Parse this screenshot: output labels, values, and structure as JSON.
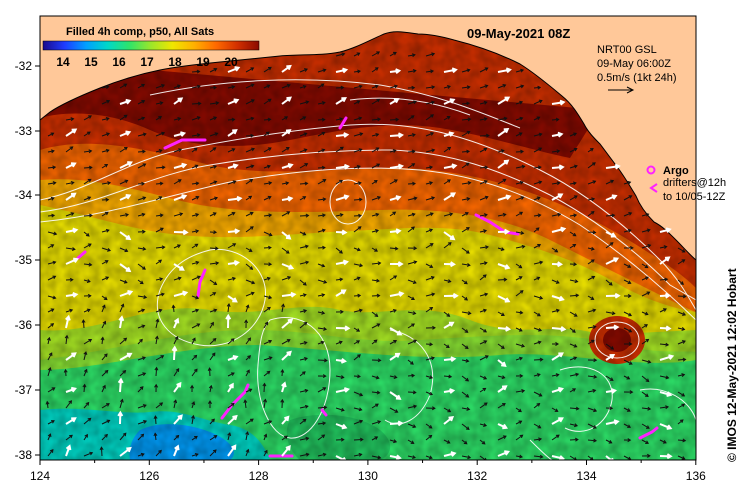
{
  "header": {
    "timestamp": "09-May-2021 08Z",
    "legend_title": "Filled 4h comp, p50, All Sats",
    "legend_ticks": [
      "14",
      "15",
      "16",
      "17",
      "18",
      "19",
      "20"
    ],
    "legend_colors": [
      "#1a0a8c",
      "#1e3cff",
      "#00a0ff",
      "#00d8c8",
      "#2ee46a",
      "#9ce62a",
      "#f0e600",
      "#ffb000",
      "#ff6a00",
      "#d23000",
      "#8a0a00"
    ]
  },
  "info_box": {
    "line1": "NRT00 GSL",
    "line2": "09-May 06:00Z",
    "line3": "0.5m/s (1kt 24h)"
  },
  "legend_markers": {
    "argo_label": "Argo",
    "drifters_line1": "drifters@12h",
    "drifters_line2": "to 10/05-12Z"
  },
  "axes": {
    "x_ticks": [
      "124",
      "126",
      "128",
      "130",
      "132",
      "134",
      "136"
    ],
    "y_ticks": [
      "-32",
      "-33",
      "-34",
      "-35",
      "-36",
      "-37",
      "-38"
    ]
  },
  "credit": "© IMOS 12-May-2021 12:02 Hobart",
  "colors": {
    "land": "#ffc899",
    "coast": "#000000",
    "contour": "#ffffff",
    "argo": "#ff22ff",
    "arrow": "#000000"
  }
}
